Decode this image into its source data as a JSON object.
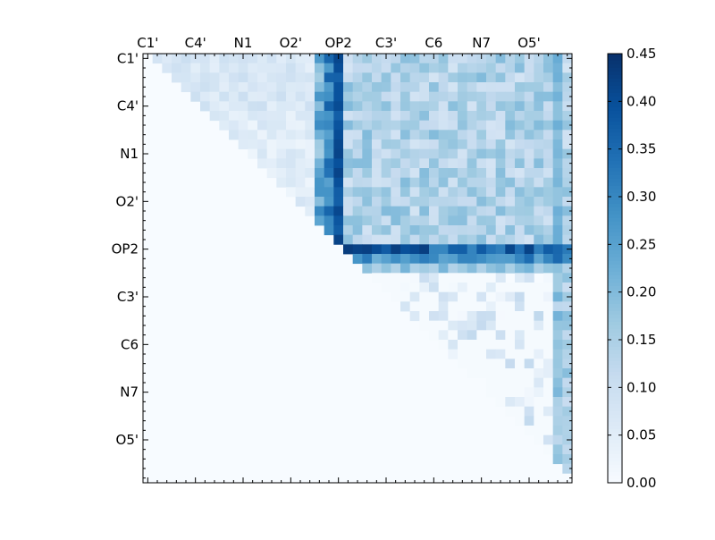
{
  "chart_data": {
    "type": "heatmap",
    "title": "",
    "xlabel": "",
    "ylabel": "",
    "n": 45,
    "tick_labels": [
      "C1'",
      "C4'",
      "N1",
      "O2'",
      "OP2",
      "C3'",
      "C6",
      "N7",
      "O5'"
    ],
    "tick_indices": [
      0,
      5,
      10,
      15,
      20,
      25,
      30,
      35,
      40
    ],
    "x_tick_position": "top",
    "colormap": "Blues",
    "vmin": 0.0,
    "vmax": 0.45,
    "matrix_note": "upper triangular pairwise values; lower triangle is 0",
    "colorbar": {
      "ticks": [
        0.0,
        0.05,
        0.1,
        0.15,
        0.2,
        0.25,
        0.3,
        0.35,
        0.4,
        0.45
      ],
      "tick_labels": [
        "0.00",
        "0.05",
        "0.10",
        "0.15",
        "0.20",
        "0.25",
        "0.30",
        "0.35",
        "0.40",
        "0.45"
      ],
      "position": "right"
    },
    "colors": {
      "low": "#f7fbff",
      "mid": "#6baed6",
      "high": "#08306b"
    },
    "bands": {
      "row_20_value": 0.38,
      "row_21_value": 0.3,
      "row_22_value": 0.17,
      "col_20_value": 0.38,
      "col_19_value": 0.32,
      "col_18_value": 0.22,
      "col_43_value": 0.2
    }
  }
}
